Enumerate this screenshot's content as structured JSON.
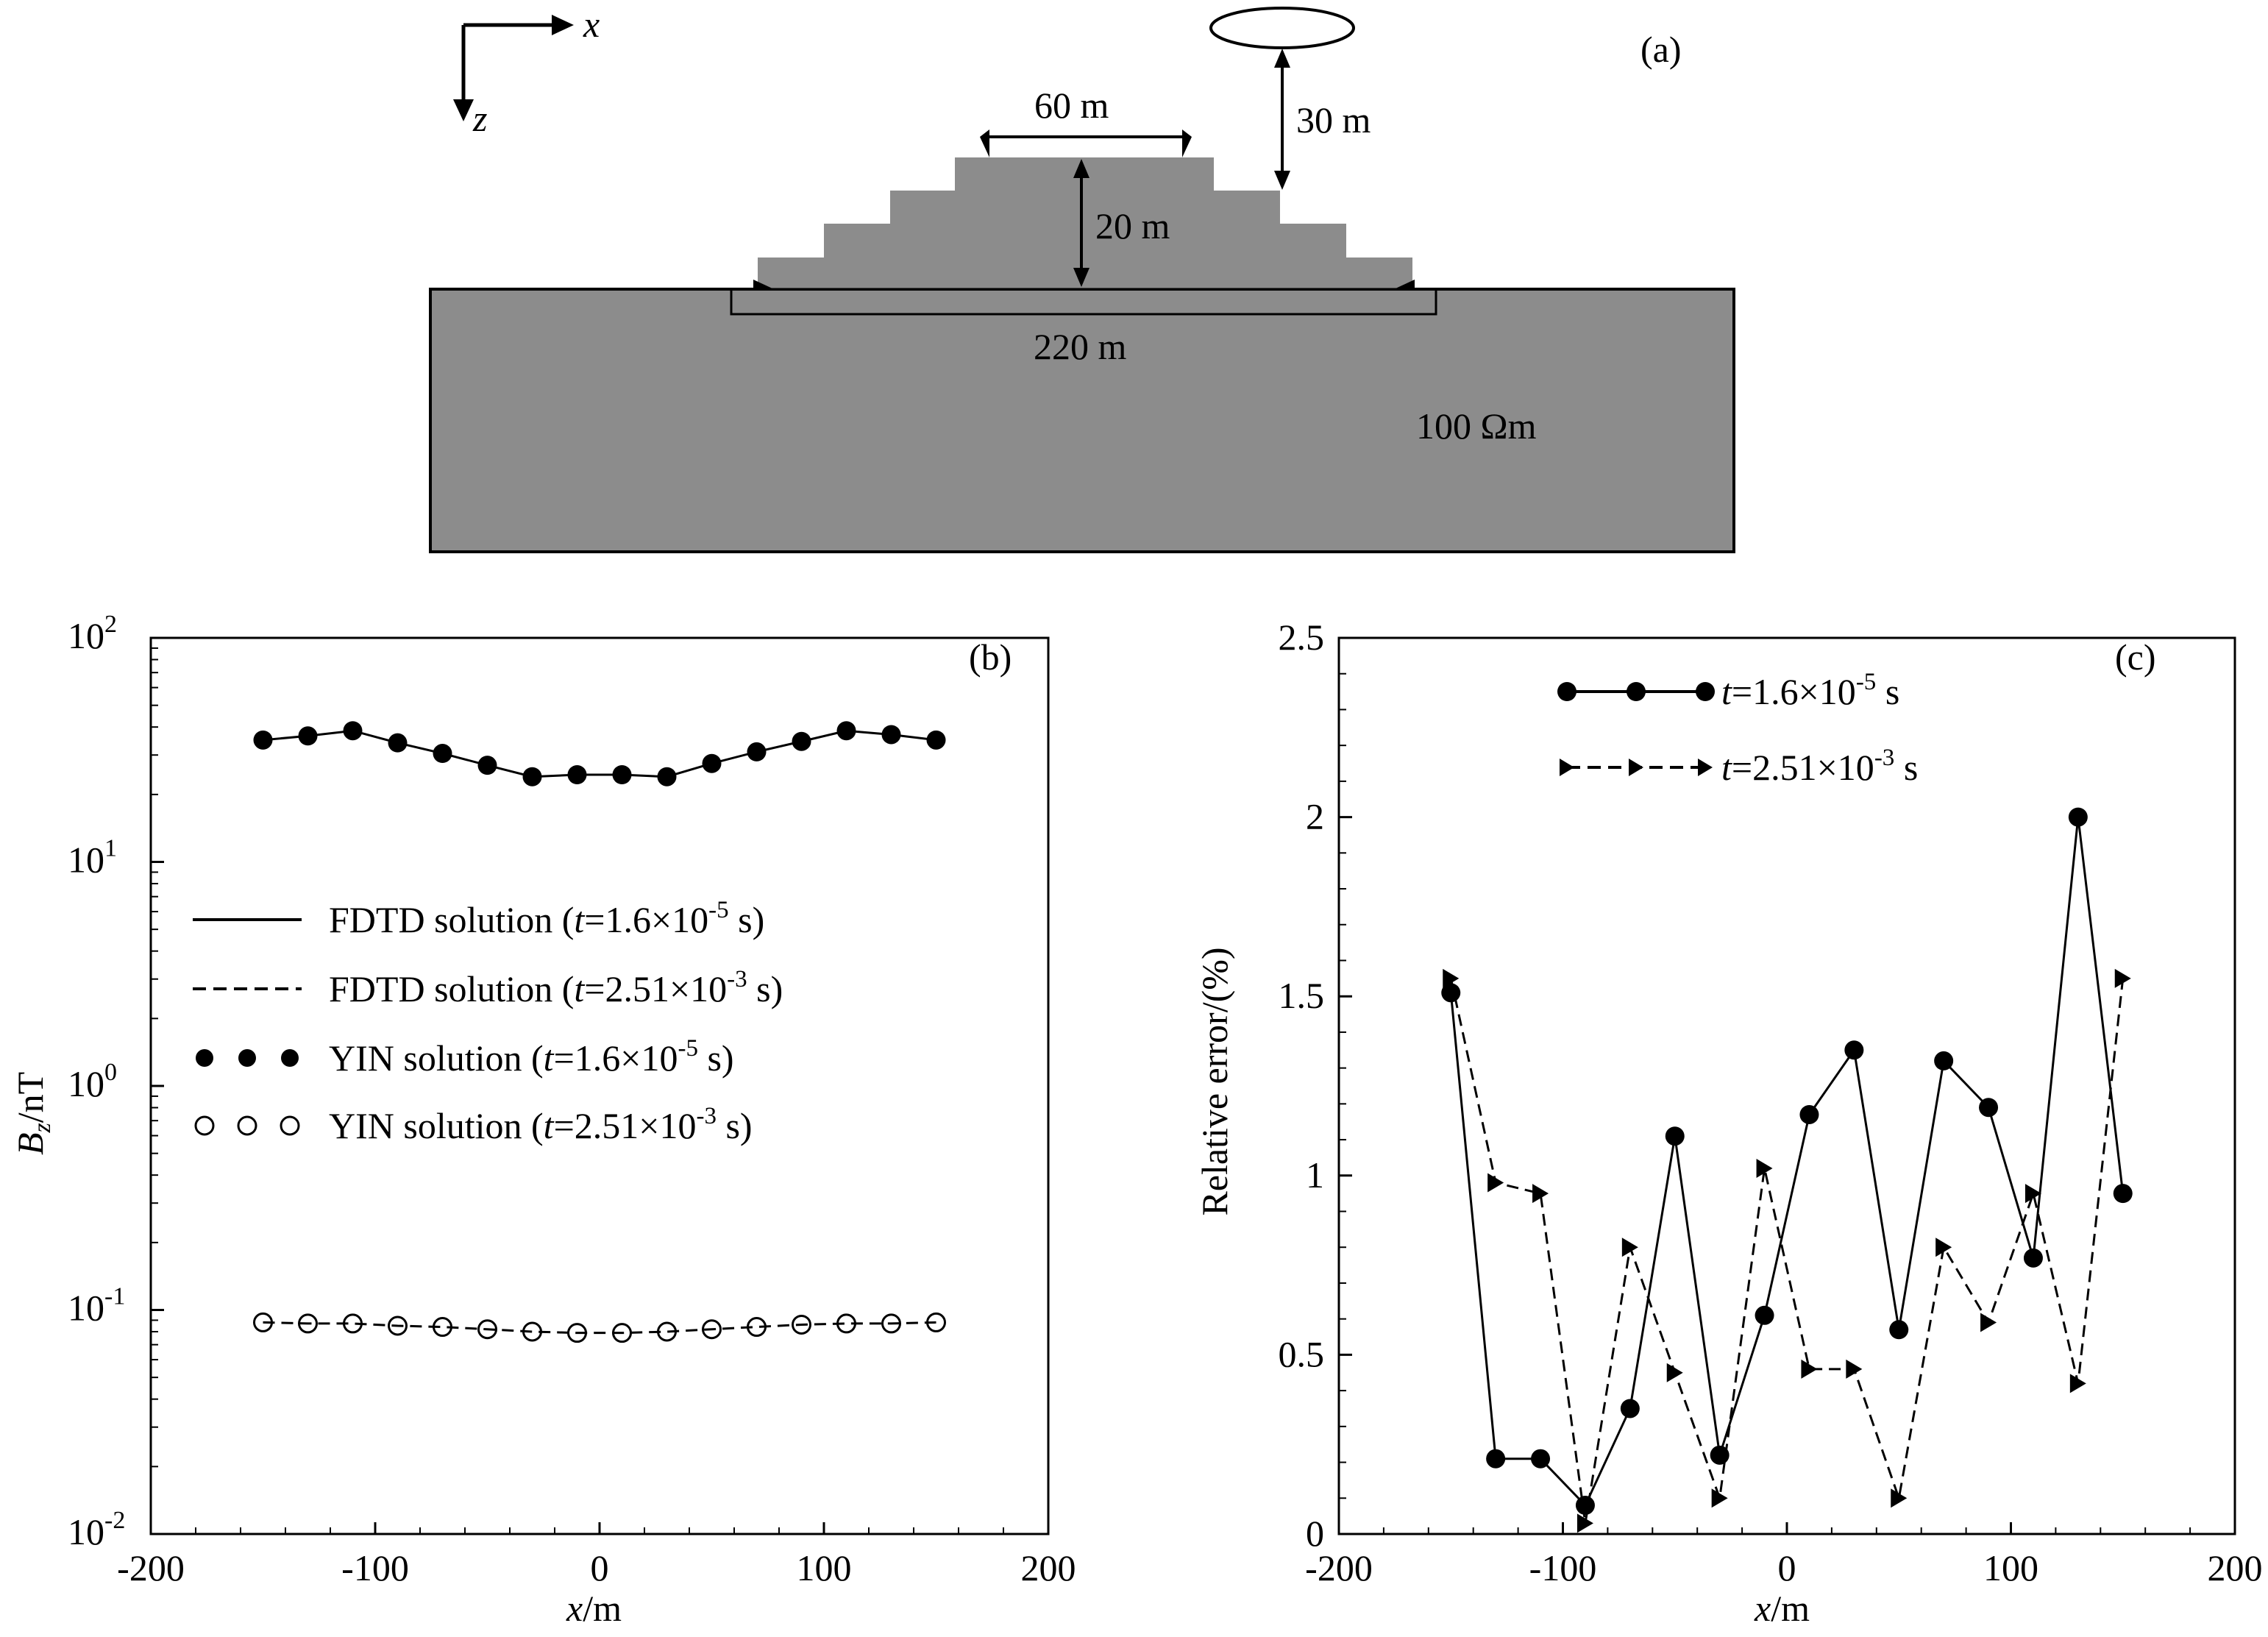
{
  "panel_a": {
    "label": "(a)",
    "axis_x": "x",
    "axis_z": "z",
    "dim_top": "60 m",
    "dim_height": "20 m",
    "dim_flight": "30 m",
    "dim_base": "220 m",
    "resistivity": "100 Ωm",
    "colors": {
      "earth": "#8c8c8c",
      "outline": "#000000"
    }
  },
  "chart_data": [
    {
      "id": "b",
      "type": "line",
      "label": "(b)",
      "ylabel_main": "B",
      "ylabel_sub": "z",
      "ylabel_rest": "/nT",
      "xlabel_italic": "x",
      "xlabel_rest": "/m",
      "yscale": "log",
      "xlim": [
        -200,
        200
      ],
      "ylim": [
        0.01,
        100
      ],
      "xticks": [
        "-200",
        "-100",
        "0",
        "100",
        "200"
      ],
      "yticks": [
        {
          "base": "10",
          "exp": "2"
        },
        {
          "base": "10",
          "exp": "1"
        },
        {
          "base": "10",
          "exp": "0"
        },
        {
          "base": "10",
          "exp": "-1"
        },
        {
          "base": "10",
          "exp": "-2"
        }
      ],
      "x": [
        -150,
        -130,
        -110,
        -90,
        -70,
        -50,
        -30,
        -10,
        10,
        30,
        50,
        70,
        90,
        110,
        130,
        150
      ],
      "series": [
        {
          "name": "FDTD solution (t=1.6×10-5 s)",
          "style": "solid",
          "values": [
            35,
            36.5,
            38.5,
            34,
            30.5,
            27,
            24,
            24.5,
            24.5,
            24,
            27.5,
            31,
            34.5,
            38.5,
            37,
            35
          ]
        },
        {
          "name": "FDTD solution (t=2.51×10-3 s)",
          "style": "dashed",
          "values": [
            0.088,
            0.087,
            0.087,
            0.085,
            0.084,
            0.082,
            0.08,
            0.079,
            0.079,
            0.08,
            0.082,
            0.084,
            0.086,
            0.087,
            0.087,
            0.088
          ]
        },
        {
          "name": "YIN solution (t=1.6×10-5 s)",
          "style": "filled-circle",
          "values": [
            35,
            36.5,
            38.5,
            34,
            30.5,
            27,
            24,
            24.5,
            24.5,
            24,
            27.5,
            31,
            34.5,
            38.5,
            37,
            35
          ]
        },
        {
          "name": "YIN solution (t=2.51×10-3 s)",
          "style": "open-circle",
          "values": [
            0.088,
            0.087,
            0.087,
            0.085,
            0.084,
            0.082,
            0.08,
            0.079,
            0.079,
            0.08,
            0.082,
            0.084,
            0.086,
            0.087,
            0.087,
            0.088
          ]
        }
      ],
      "legend": [
        {
          "pre": "FDTD solution (",
          "t": "t",
          "mid": "=1.6×10",
          "exp": "-5",
          "post": " s)"
        },
        {
          "pre": "FDTD solution (",
          "t": "t",
          "mid": "=2.51×10",
          "exp": "-3",
          "post": " s)"
        },
        {
          "pre": "YIN solution (",
          "t": "t",
          "mid": "=1.6×10",
          "exp": "-5",
          "post": " s)"
        },
        {
          "pre": "YIN solution (",
          "t": "t",
          "mid": "=2.51×10",
          "exp": "-3",
          "post": " s)"
        }
      ],
      "legend_position": "middle-left"
    },
    {
      "id": "c",
      "type": "line",
      "label": "(c)",
      "ylabel": "Relative error/(%)",
      "xlabel_italic": "x",
      "xlabel_rest": "/m",
      "xlim": [
        -200,
        200
      ],
      "ylim": [
        0,
        2.5
      ],
      "xticks": [
        "-200",
        "-100",
        "0",
        "100",
        "200"
      ],
      "yticks": [
        "0",
        "0.5",
        "1",
        "1.5",
        "2",
        "2.5"
      ],
      "x": [
        -150,
        -130,
        -110,
        -90,
        -70,
        -50,
        -30,
        -10,
        10,
        30,
        50,
        70,
        90,
        110,
        130,
        150
      ],
      "series": [
        {
          "name": "t=1.6×10-5 s",
          "style": "solid-filled-circle",
          "values": [
            1.51,
            0.21,
            0.21,
            0.08,
            0.35,
            1.11,
            0.22,
            0.61,
            1.17,
            1.35,
            0.57,
            1.32,
            1.19,
            0.77,
            2.0,
            0.95
          ]
        },
        {
          "name": "t=2.51×10-3 s",
          "style": "dashed-triangle",
          "values": [
            1.55,
            0.98,
            0.95,
            0.03,
            0.8,
            0.45,
            0.1,
            1.02,
            0.46,
            0.46,
            0.1,
            0.8,
            0.59,
            0.95,
            0.42,
            1.55
          ]
        }
      ],
      "legend": [
        {
          "t": "t",
          "mid": "=1.6×10",
          "exp": "-5",
          "post": " s"
        },
        {
          "t": "t",
          "mid": "=2.51×10",
          "exp": "-3",
          "post": " s"
        }
      ],
      "legend_position": "top-center"
    }
  ]
}
